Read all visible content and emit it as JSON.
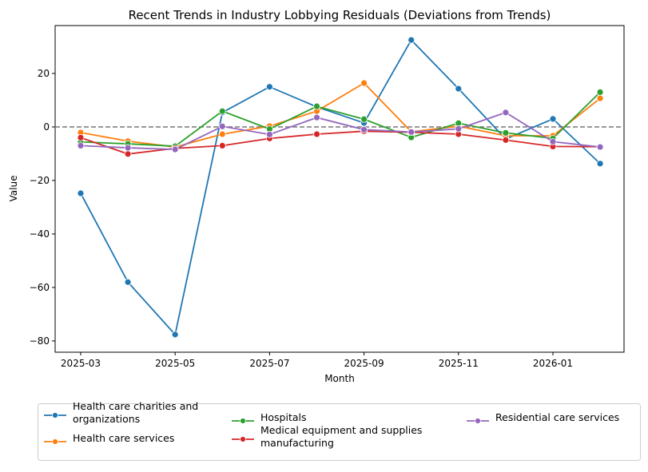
{
  "chart_data": {
    "type": "line",
    "title": "Recent Trends in Industry Lobbying Residuals (Deviations from Trends)",
    "xlabel": "Month",
    "ylabel": "Value",
    "x": [
      "2025-03",
      "2025-04",
      "2025-05",
      "2025-06",
      "2025-07",
      "2025-08",
      "2025-09",
      "2025-10",
      "2025-11",
      "2025-12",
      "2026-01",
      "2026-02"
    ],
    "xticks": [
      "2025-03",
      "2025-05",
      "2025-07",
      "2025-09",
      "2025-11",
      "2026-01"
    ],
    "yticks": [
      -80,
      -60,
      -40,
      -20,
      0,
      20
    ],
    "ylim": [
      -84.2,
      37.9
    ],
    "grid": false,
    "reference_line": {
      "y": 0,
      "style": "dashed",
      "color": "#808080"
    },
    "legend_placement": "bottom-outside",
    "series": [
      {
        "name": "Health care charities and organizations",
        "color": "#1f77b4",
        "values": [
          -24.8,
          -58,
          -77.6,
          5.4,
          15,
          7.5,
          1.5,
          32.5,
          14.3,
          -4.5,
          3,
          -13.7
        ]
      },
      {
        "name": "Health care services",
        "color": "#ff7f0e",
        "values": [
          -2.1,
          -5.3,
          -7.5,
          -2.7,
          0.3,
          5.9,
          16.4,
          -1.8,
          0.3,
          -3.3,
          -3.3,
          10.7
        ]
      },
      {
        "name": "Hospitals",
        "color": "#2ca02c",
        "values": [
          -5.6,
          -6.3,
          -7.2,
          5.9,
          -0.8,
          7.7,
          2.9,
          -3.9,
          1.4,
          -2.2,
          -4.3,
          13
        ]
      },
      {
        "name": "Medical equipment and supplies manufacturing",
        "color": "#d62728",
        "values": [
          -4,
          -10.1,
          -8,
          -7,
          -4.3,
          -2.7,
          -1.6,
          -2,
          -2.7,
          -4.9,
          -7.3,
          -7.4
        ]
      },
      {
        "name": "Residential care services",
        "color": "#9467bd",
        "values": [
          -7,
          -7.8,
          -8.4,
          0.2,
          -2.8,
          3.5,
          -1,
          -1.9,
          -0.7,
          5.4,
          -5.5,
          -7.5
        ]
      }
    ],
    "legend_lines": [
      [
        "Health care charities and",
        "organizations"
      ],
      [
        "Health care services"
      ],
      [
        "Hospitals"
      ],
      [
        "Medical equipment and supplies",
        "manufacturing"
      ],
      [
        "Residential care services"
      ]
    ]
  }
}
